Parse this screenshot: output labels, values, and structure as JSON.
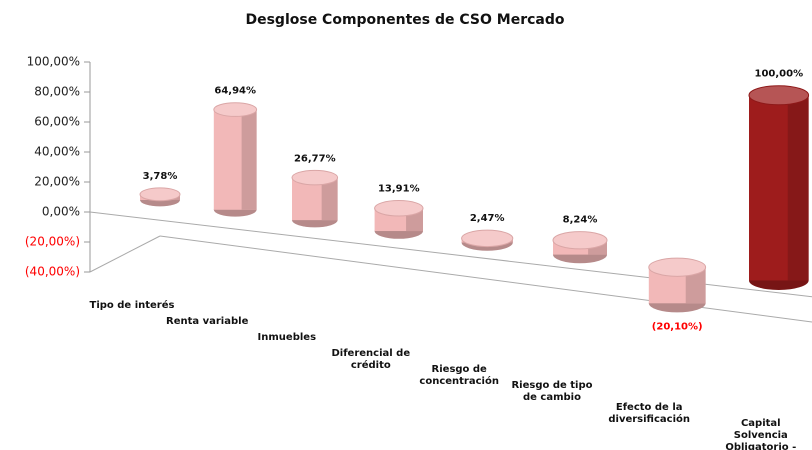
{
  "chart_data": {
    "type": "bar3d",
    "title": "Desglose Componentes de CSO Mercado",
    "categories": [
      "Tipo de interés",
      "Renta variable",
      "Inmuebles",
      "Diferencial de crédito",
      "Riesgo de concentración",
      "Riesgo de tipo de cambio",
      "Efecto de la diversificación",
      "Capital Solvencia Obligatorio - Mercado"
    ],
    "values": [
      3.78,
      64.94,
      26.77,
      13.91,
      2.47,
      8.24,
      -20.1,
      100
    ],
    "value_labels": [
      "3,78%",
      "64,94%",
      "26,77%",
      "13,91%",
      "2,47%",
      "8,24%",
      "(20,10%)",
      "100,00%"
    ],
    "colors": [
      "#f2b8b8",
      "#f2b8b8",
      "#f2b8b8",
      "#f2b8b8",
      "#f2b8b8",
      "#f2b8b8",
      "#f2b8b8",
      "#9e1c1c"
    ],
    "negative_color": "#ff0000",
    "ylim": [
      -40,
      100
    ],
    "yticks": [
      {
        "value": 100,
        "label": "100,00%"
      },
      {
        "value": 80,
        "label": "80,00%"
      },
      {
        "value": 60,
        "label": "60,00%"
      },
      {
        "value": 40,
        "label": "40,00%"
      },
      {
        "value": 20,
        "label": "20,00%"
      },
      {
        "value": 0,
        "label": "0,00%"
      },
      {
        "value": -20,
        "label": "(20,00%)"
      },
      {
        "value": -40,
        "label": "(40,00%)"
      }
    ]
  }
}
